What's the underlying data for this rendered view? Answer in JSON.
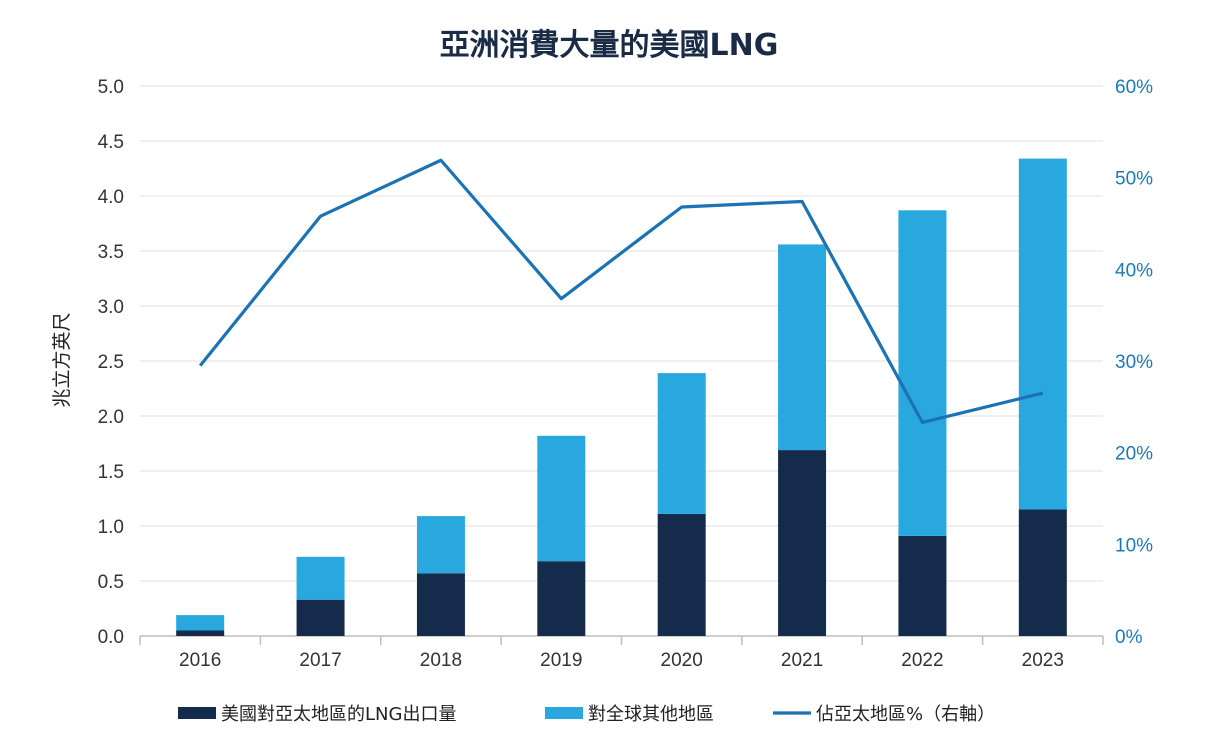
{
  "colors": {
    "us_to_asia": "#142b4b",
    "rest_of_world": "#29a8e0",
    "share_line": "#1b72b4",
    "right_axis_text": "#1e78b8",
    "grid": "#e2e2e2"
  },
  "chart_data": {
    "type": "bar",
    "stacked": true,
    "title": "亞洲消費大量的美國LNG",
    "ylabel": "兆立方英尺",
    "xlabel": "",
    "ylim": [
      0,
      5.0
    ],
    "y2lim": [
      0,
      60
    ],
    "categories": [
      "2016",
      "2017",
      "2018",
      "2019",
      "2020",
      "2021",
      "2022",
      "2023"
    ],
    "left_ticks": [
      "0.0",
      "0.5",
      "1.0",
      "1.5",
      "2.0",
      "2.5",
      "3.0",
      "3.5",
      "4.0",
      "4.5",
      "5.0"
    ],
    "right_ticks": [
      "0%",
      "10%",
      "20%",
      "30%",
      "40%",
      "50%",
      "60%"
    ],
    "grid": true,
    "legend_position": "bottom",
    "series": [
      {
        "name": "美國對亞太地區的LNG出口量",
        "kind": "bar",
        "axis": "left",
        "values": [
          0.05,
          0.33,
          0.57,
          0.68,
          1.11,
          1.69,
          0.91,
          1.15
        ]
      },
      {
        "name": "對全球其他地區",
        "kind": "bar",
        "axis": "left",
        "values": [
          0.14,
          0.39,
          0.52,
          1.14,
          1.28,
          1.87,
          2.96,
          3.19
        ]
      },
      {
        "name": "佔亞太地區%（右軸）",
        "kind": "line",
        "axis": "right",
        "values": [
          29.5,
          45.8,
          51.9,
          36.8,
          46.8,
          47.4,
          23.3,
          26.5
        ]
      }
    ]
  }
}
